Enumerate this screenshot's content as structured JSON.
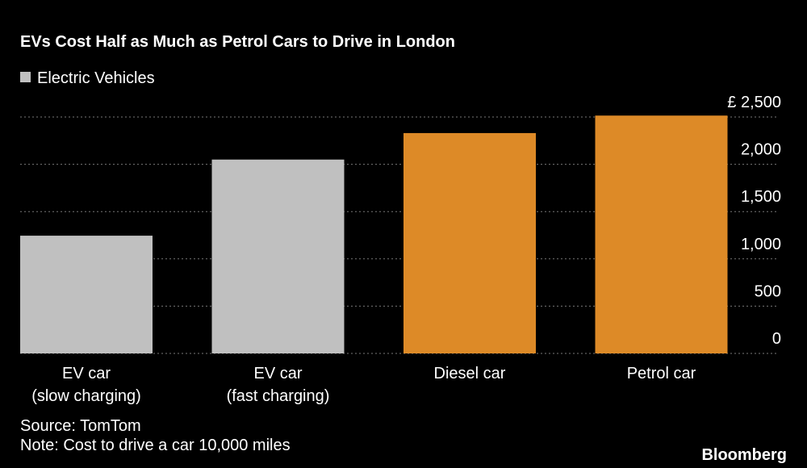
{
  "chart_data": {
    "type": "bar",
    "title": "EVs Cost Half as Much as Petrol Cars to Drive in London",
    "legend": {
      "label": "Electric Vehicles",
      "color": "#c0c0c0"
    },
    "categories": [
      "EV car\n(slow charging)",
      "EV car\n(fast charging)",
      "Diesel car",
      "Petrol car"
    ],
    "values": [
      1245,
      2050,
      2330,
      2515
    ],
    "colors": [
      "#c0c0c0",
      "#c0c0c0",
      "#dd8a27",
      "#dd8a27"
    ],
    "ylim": [
      0,
      2500
    ],
    "yticks": [
      0,
      500,
      {
        "value": 1000,
        "label": "1,000"
      },
      {
        "value": 1500,
        "label": "1,500"
      },
      {
        "value": 2000,
        "label": "2,000"
      },
      {
        "value": 2500,
        "label": "£ 2,500"
      }
    ],
    "grid": true,
    "source": "Source: TomTom",
    "note": "Note: Cost to drive a car 10,000 miles",
    "brand": "Bloomberg"
  }
}
